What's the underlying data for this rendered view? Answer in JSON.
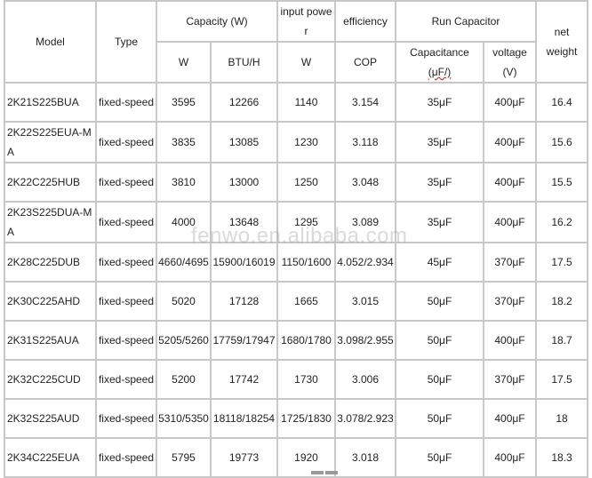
{
  "header": {
    "model": "Model",
    "type": "Type",
    "capacity": "Capacity (W)",
    "input_power": "input power",
    "efficiency": "efficiency",
    "run_capacitor": "Run Capacitor",
    "net_weight": "net weight",
    "cap_w": "W",
    "cap_btu": "BTU/H",
    "input_w": "W",
    "cop": "COP",
    "capacitance": "Capacitance",
    "capacitance_unit": "(μF/)",
    "voltage": "voltage",
    "voltage_unit": "(V)"
  },
  "rows": [
    [
      "2K21S225BUA",
      "fixed-speed",
      "3595",
      "12266",
      "1140",
      "3.154",
      "35μF",
      "400μF",
      "16.4"
    ],
    [
      "2K22S225EUA-MA",
      "fixed-speed",
      "3835",
      "13085",
      "1230",
      "3.118",
      "35μF",
      "400μF",
      "15.6"
    ],
    [
      "2K22C225HUB",
      "fixed-speed",
      "3810",
      "13000",
      "1250",
      "3.048",
      "35μF",
      "400μF",
      "15.5"
    ],
    [
      "2K23S225DUA-MA",
      "fixed-speed",
      "4000",
      "13648",
      "1295",
      "3.089",
      "35μF",
      "400μF",
      "16.2"
    ],
    [
      "2K28C225DUB",
      "fixed-speed",
      "4660/4695",
      "15900/16019",
      "1150/1600",
      "4.052/2.934",
      "45μF",
      "370μF",
      "17.5"
    ],
    [
      "2K30C225AHD",
      "fixed-speed",
      "5020",
      "17128",
      "1665",
      "3.015",
      "50μF",
      "370μF",
      "18.2"
    ],
    [
      "2K31S225AUA",
      "fixed-speed",
      "5205/5260",
      "17759/17947",
      "1680/1780",
      "3.098/2.955",
      "50μF",
      "400μF",
      "18.7"
    ],
    [
      "2K32C225CUD",
      "fixed-speed",
      "5200",
      "17742",
      "1730",
      "3.006",
      "50μF",
      "370μF",
      "17.5"
    ],
    [
      "2K32S225AUD",
      "fixed-speed",
      "5310/5350",
      "18118/18254",
      "1725/1830",
      "3.078/2.923",
      "50μF",
      "400μF",
      "18"
    ],
    [
      "2K34C225EUA",
      "fixed-speed",
      "5795",
      "19773",
      "1920",
      "3.018",
      "50μF",
      "400μF",
      "18.3"
    ]
  ],
  "watermark": "fenwo.en.alibaba.com"
}
